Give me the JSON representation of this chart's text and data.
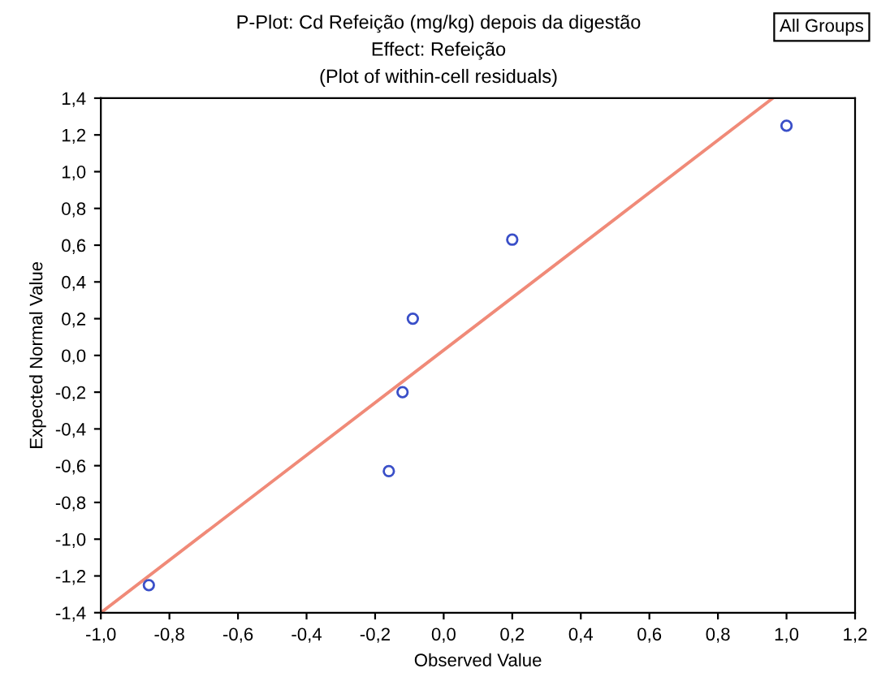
{
  "chart_data": {
    "type": "scatter",
    "title": "P-Plot: Cd Refeição (mg/kg) depois da digestão",
    "subtitle": "Effect: Refeição",
    "annotations": [
      "(Plot of within-cell residuals)",
      "All Groups"
    ],
    "xlabel": "Observed Value",
    "ylabel": "Expected Normal Value",
    "series": [
      {
        "color": "#3a4fc8",
        "marker": "circle",
        "x": [
          -0.86,
          -0.16,
          -0.12,
          -0.09,
          0.2,
          1.0
        ],
        "values": [
          -1.25,
          -0.63,
          -0.2,
          0.2,
          0.63,
          1.25
        ]
      },
      {
        "type": "line",
        "color": "#f08a78",
        "marker": "none",
        "line_style": "solid",
        "x": [
          -1.0,
          0.96
        ],
        "values": [
          -1.4,
          1.4
        ]
      }
    ],
    "xlim": [
      -1.0,
      1.2
    ],
    "ylim": [
      -1.4,
      1.4
    ],
    "xticks": [
      {
        "value": -1.0,
        "label": "-1,0"
      },
      {
        "value": -0.8,
        "label": "-0,8"
      },
      {
        "value": -0.6,
        "label": "-0,6"
      },
      {
        "value": -0.4,
        "label": "-0,4"
      },
      {
        "value": -0.2,
        "label": "-0,2"
      },
      {
        "value": 0.0,
        "label": "0,0"
      },
      {
        "value": 0.2,
        "label": "0,2"
      },
      {
        "value": 0.4,
        "label": "0,4"
      },
      {
        "value": 0.6,
        "label": "0,6"
      },
      {
        "value": 0.8,
        "label": "0,8"
      },
      {
        "value": 1.0,
        "label": "1,0"
      },
      {
        "value": 1.2,
        "label": "1,2"
      }
    ],
    "yticks": [
      {
        "value": -1.4,
        "label": "-1,4"
      },
      {
        "value": -1.2,
        "label": "-1,2"
      },
      {
        "value": -1.0,
        "label": "-1,0"
      },
      {
        "value": -0.8,
        "label": "-0,8"
      },
      {
        "value": -0.6,
        "label": "-0,6"
      },
      {
        "value": -0.4,
        "label": "-0,4"
      },
      {
        "value": -0.2,
        "label": "-0,2"
      },
      {
        "value": 0.0,
        "label": "0,0"
      },
      {
        "value": 0.2,
        "label": "0,2"
      },
      {
        "value": 0.4,
        "label": "0,4"
      },
      {
        "value": 0.6,
        "label": "0,6"
      },
      {
        "value": 0.8,
        "label": "0,8"
      },
      {
        "value": 1.0,
        "label": "1,0"
      },
      {
        "value": 1.2,
        "label": "1,2"
      },
      {
        "value": 1.4,
        "label": "1,4"
      }
    ],
    "grid": false,
    "legend": false
  }
}
